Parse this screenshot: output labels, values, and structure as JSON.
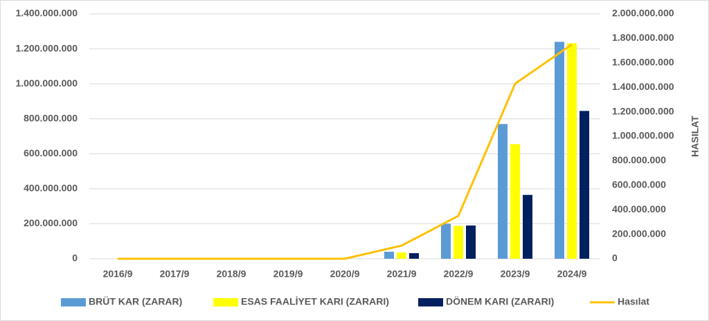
{
  "chart_data": {
    "type": "bar",
    "categories": [
      "2016/9",
      "2017/9",
      "2018/9",
      "2019/9",
      "2020/9",
      "2021/9",
      "2022/9",
      "2023/9",
      "2024/9"
    ],
    "y2_label": "HASILAT",
    "ylim": [
      0,
      1400000000
    ],
    "yticks": [
      0,
      {
        "value": 200000000,
        "label": "200.000.000"
      },
      {
        "value": 400000000,
        "label": "400.000.000"
      },
      {
        "value": 600000000,
        "label": "600.000.000"
      },
      {
        "value": 800000000,
        "label": "800.000.000"
      },
      {
        "value": 1000000000,
        "label": "1.000.000.000"
      },
      {
        "value": 1200000000,
        "label": "1.200.000.000"
      },
      {
        "value": 1400000000,
        "label": "1.400.000.000"
      }
    ],
    "y2lim": [
      0,
      2000000000
    ],
    "y2ticks": [
      0,
      {
        "value": 200000000,
        "label": "200.000.000"
      },
      {
        "value": 400000000,
        "label": "400.000.000"
      },
      {
        "value": 600000000,
        "label": "600.000.000"
      },
      {
        "value": 800000000,
        "label": "800.000.000"
      },
      {
        "value": 1000000000,
        "label": "1.000.000.000"
      },
      {
        "value": 1200000000,
        "label": "1.200.000.000"
      },
      {
        "value": 1400000000,
        "label": "1.400.000.000"
      },
      {
        "value": 1600000000,
        "label": "1.600.000.000"
      },
      {
        "value": 1800000000,
        "label": "1.800.000.000"
      },
      {
        "value": 2000000000,
        "label": "2.000.000.000"
      }
    ],
    "grid": true,
    "series": [
      {
        "name": "BRÜT KAR (ZARAR)",
        "type": "bar",
        "color": "#5b9bd5",
        "values": [
          0,
          0,
          0,
          0,
          0,
          40000000,
          200000000,
          770000000,
          1240000000
        ]
      },
      {
        "name": "ESAS FAALİYET KARI (ZARARI)",
        "type": "bar",
        "color": "#ffff00",
        "values": [
          0,
          0,
          0,
          0,
          0,
          36000000,
          188000000,
          655000000,
          1232000000
        ]
      },
      {
        "name": "DÖNEM KARI (ZARARI)",
        "type": "bar",
        "color": "#002060",
        "values": [
          0,
          0,
          0,
          0,
          0,
          32000000,
          190000000,
          365000000,
          845000000
        ]
      },
      {
        "name": "Hasılat",
        "type": "line",
        "axis": "y2",
        "color": "#ffc000",
        "values": [
          0,
          0,
          0,
          0,
          0,
          107000000,
          350000000,
          1430000000,
          1750000000
        ]
      }
    ]
  }
}
